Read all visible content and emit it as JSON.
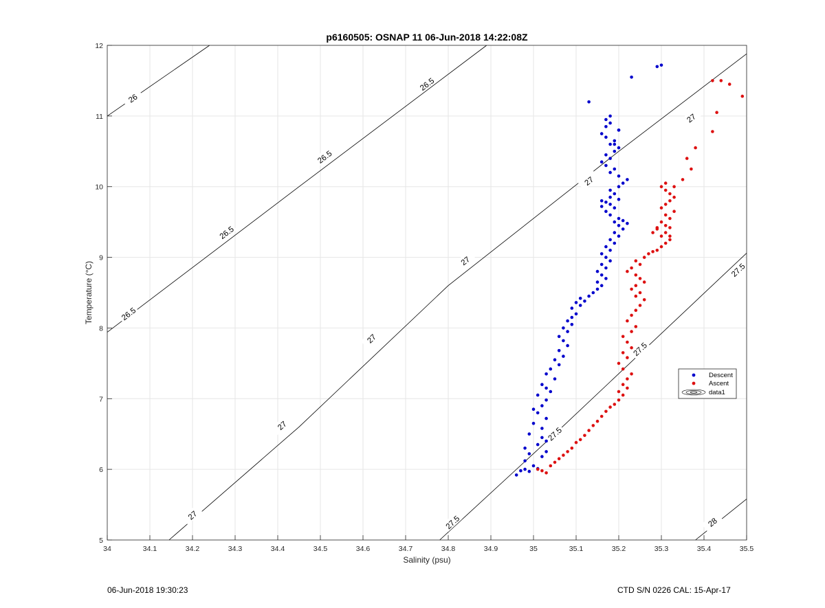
{
  "chart_data": {
    "type": "scatter",
    "title": "p6160505: OSNAP 11 06-Jun-2018 14:22:08Z",
    "xlabel": "Salinity (psu)",
    "ylabel": "Temperature (°C)",
    "xlim": [
      34,
      35.5
    ],
    "ylim": [
      5,
      12
    ],
    "xticks": [
      "34",
      "34.1",
      "34.2",
      "34.3",
      "34.4",
      "34.5",
      "34.6",
      "34.7",
      "34.8",
      "34.9",
      "35",
      "35.1",
      "35.2",
      "35.3",
      "35.4",
      "35.5"
    ],
    "yticks": [
      "5",
      "6",
      "7",
      "8",
      "9",
      "10",
      "11",
      "12"
    ],
    "grid": true,
    "legend_position": "right",
    "series": [
      {
        "name": "Descent",
        "color": "#0000cc",
        "x": [
          34.96,
          34.97,
          34.98,
          34.99,
          35.01,
          35.0,
          34.98,
          35.02,
          34.99,
          35.03,
          34.98,
          35.01,
          35.03,
          35.02,
          34.99,
          35.02,
          35.0,
          35.03,
          35.01,
          35.0,
          35.02,
          35.03,
          35.01,
          35.04,
          35.03,
          35.02,
          35.05,
          35.03,
          35.04,
          35.06,
          35.05,
          35.07,
          35.06,
          35.08,
          35.07,
          35.06,
          35.08,
          35.07,
          35.09,
          35.08,
          35.09,
          35.1,
          35.09,
          35.11,
          35.1,
          35.12,
          35.11,
          35.13,
          35.14,
          35.15,
          35.16,
          35.15,
          35.17,
          35.16,
          35.15,
          35.17,
          35.16,
          35.18,
          35.17,
          35.16,
          35.18,
          35.17,
          35.19,
          35.18,
          35.2,
          35.19,
          35.21,
          35.2,
          35.19,
          35.22,
          35.21,
          35.2,
          35.18,
          35.17,
          35.19,
          35.18,
          35.16,
          35.2,
          35.18,
          35.17,
          35.16,
          35.19,
          35.18,
          35.2,
          35.21,
          35.22,
          35.2,
          35.18,
          35.19,
          35.17,
          35.16,
          35.18,
          35.17,
          35.19,
          35.2,
          35.18,
          35.19,
          35.17,
          35.16,
          35.2,
          35.17,
          35.18,
          35.13,
          35.18,
          35.17,
          35.2,
          35.19,
          35.23,
          35.29,
          35.3
        ],
        "y": [
          5.92,
          5.98,
          6.0,
          5.97,
          6.01,
          6.05,
          6.12,
          6.18,
          6.22,
          6.25,
          6.3,
          6.35,
          6.4,
          6.45,
          6.5,
          6.58,
          6.65,
          6.72,
          6.8,
          6.85,
          6.9,
          6.98,
          7.05,
          7.1,
          7.15,
          7.2,
          7.28,
          7.35,
          7.42,
          7.48,
          7.55,
          7.6,
          7.68,
          7.75,
          7.82,
          7.88,
          7.95,
          8.0,
          8.05,
          8.1,
          8.15,
          8.2,
          8.28,
          8.32,
          8.36,
          8.38,
          8.42,
          8.45,
          8.5,
          8.55,
          8.6,
          8.65,
          8.7,
          8.75,
          8.8,
          8.85,
          8.9,
          8.95,
          9.0,
          9.05,
          9.1,
          9.15,
          9.2,
          9.25,
          9.3,
          9.35,
          9.4,
          9.45,
          9.5,
          9.48,
          9.52,
          9.55,
          9.6,
          9.65,
          9.7,
          9.75,
          9.8,
          9.82,
          9.85,
          9.78,
          9.72,
          9.9,
          9.95,
          10.0,
          10.05,
          10.1,
          10.15,
          10.2,
          10.25,
          10.3,
          10.35,
          10.4,
          10.45,
          10.5,
          10.55,
          10.6,
          10.65,
          10.7,
          10.75,
          10.8,
          10.85,
          10.9,
          11.2,
          11.0,
          10.95,
          10.8,
          10.6,
          11.55,
          11.7,
          11.72
        ]
      },
      {
        "name": "Ascent",
        "color": "#dd1111",
        "x": [
          35.03,
          35.02,
          35.01,
          35.04,
          35.05,
          35.06,
          35.07,
          35.08,
          35.09,
          35.1,
          35.11,
          35.12,
          35.13,
          35.14,
          35.15,
          35.16,
          35.17,
          35.18,
          35.19,
          35.2,
          35.21,
          35.2,
          35.22,
          35.21,
          35.22,
          35.23,
          35.21,
          35.2,
          35.22,
          35.21,
          35.23,
          35.22,
          35.21,
          35.23,
          35.24,
          35.22,
          35.23,
          35.24,
          35.25,
          35.26,
          35.24,
          35.25,
          35.23,
          35.24,
          35.26,
          35.25,
          35.24,
          35.22,
          35.23,
          35.25,
          35.24,
          35.26,
          35.27,
          35.28,
          35.29,
          35.3,
          35.31,
          35.32,
          35.3,
          35.31,
          35.29,
          35.32,
          35.31,
          35.3,
          35.32,
          35.31,
          35.33,
          35.3,
          35.31,
          35.32,
          35.33,
          35.32,
          35.31,
          35.3,
          35.31,
          35.29,
          35.28,
          35.32,
          35.33,
          35.35,
          35.37,
          35.36,
          35.38,
          35.42,
          35.43,
          35.42,
          35.44,
          35.46,
          35.49
        ],
        "y": [
          5.95,
          5.98,
          6.0,
          6.05,
          6.1,
          6.15,
          6.2,
          6.25,
          6.3,
          6.38,
          6.42,
          6.48,
          6.55,
          6.62,
          6.68,
          6.75,
          6.82,
          6.88,
          6.92,
          6.98,
          7.05,
          7.1,
          7.15,
          7.2,
          7.28,
          7.35,
          7.42,
          7.5,
          7.58,
          7.65,
          7.72,
          7.8,
          7.88,
          7.95,
          8.02,
          8.1,
          8.18,
          8.25,
          8.32,
          8.4,
          8.45,
          8.5,
          8.55,
          8.6,
          8.65,
          8.7,
          8.75,
          8.8,
          8.85,
          8.9,
          8.95,
          9.0,
          9.05,
          9.08,
          9.1,
          9.15,
          9.2,
          9.25,
          9.3,
          9.35,
          9.4,
          9.42,
          9.45,
          9.5,
          9.55,
          9.6,
          9.65,
          9.7,
          9.75,
          9.8,
          9.85,
          9.9,
          9.95,
          10.0,
          10.05,
          9.42,
          9.35,
          9.3,
          10.0,
          10.1,
          10.25,
          10.4,
          10.55,
          10.78,
          11.05,
          11.5,
          11.5,
          11.45,
          11.28
        ]
      }
    ],
    "legend_extra": {
      "name": "data1"
    },
    "contours": [
      {
        "label": "26",
        "pts": [
          [
            34,
            11.0
          ],
          [
            34.24,
            12.0
          ]
        ],
        "labels_at": [
          [
            34.06,
            11.25
          ]
        ]
      },
      {
        "label": "26.5",
        "pts": [
          [
            34,
            7.94
          ],
          [
            34.45,
            10.0
          ],
          [
            34.89,
            12.0
          ]
        ],
        "labels_at": [
          [
            34.05,
            8.2
          ],
          [
            34.28,
            9.35
          ],
          [
            34.51,
            10.42
          ],
          [
            34.75,
            11.45
          ]
        ]
      },
      {
        "label": "27",
        "pts": [
          [
            34.145,
            5.0
          ],
          [
            34.45,
            6.6
          ],
          [
            34.8,
            8.6
          ],
          [
            35.2,
            10.5
          ],
          [
            35.5,
            11.88
          ]
        ],
        "labels_at": [
          [
            34.2,
            5.35
          ],
          [
            34.41,
            6.62
          ],
          [
            34.62,
            7.85
          ],
          [
            34.84,
            8.95
          ],
          [
            35.13,
            10.08
          ],
          [
            35.37,
            10.97
          ]
        ]
      },
      {
        "label": "27.5",
        "pts": [
          [
            34.78,
            5.0
          ],
          [
            35.05,
            6.5
          ],
          [
            35.5,
            9.06
          ]
        ],
        "labels_at": [
          [
            34.81,
            5.25
          ],
          [
            35.05,
            6.5
          ],
          [
            35.25,
            7.7
          ],
          [
            35.48,
            8.82
          ]
        ]
      },
      {
        "label": "28",
        "pts": [
          [
            35.38,
            5.0
          ],
          [
            35.5,
            5.58
          ]
        ],
        "labels_at": [
          [
            35.42,
            5.25
          ]
        ]
      }
    ],
    "footer_left": "06-Jun-2018 19:30:23",
    "footer_right": "CTD S/N 0226  CAL: 15-Apr-17"
  }
}
